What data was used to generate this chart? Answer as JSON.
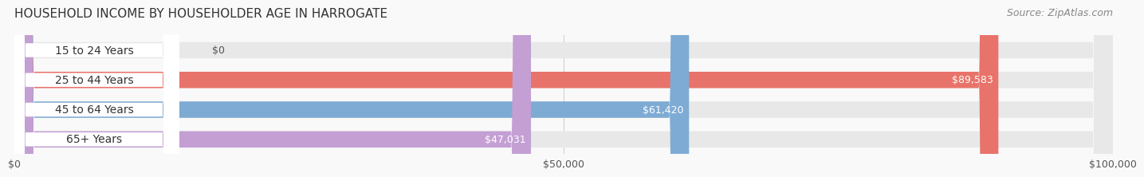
{
  "title": "HOUSEHOLD INCOME BY HOUSEHOLDER AGE IN HARROGATE",
  "source": "Source: ZipAtlas.com",
  "categories": [
    "15 to 24 Years",
    "25 to 44 Years",
    "45 to 64 Years",
    "65+ Years"
  ],
  "values": [
    0,
    89583,
    61420,
    47031
  ],
  "bar_colors": [
    "#f0c89a",
    "#e8736a",
    "#7eabd4",
    "#c49fd4"
  ],
  "bar_bg_color": "#f0f0f0",
  "value_labels": [
    "$0",
    "$89,583",
    "$61,420",
    "$47,031"
  ],
  "xlim": [
    0,
    100000
  ],
  "xtick_vals": [
    0,
    50000,
    100000
  ],
  "xtick_labels": [
    "$0",
    "$50,000",
    "$100,000"
  ],
  "background_color": "#f9f9f9",
  "title_fontsize": 11,
  "source_fontsize": 9,
  "label_fontsize": 10,
  "value_fontsize": 9
}
